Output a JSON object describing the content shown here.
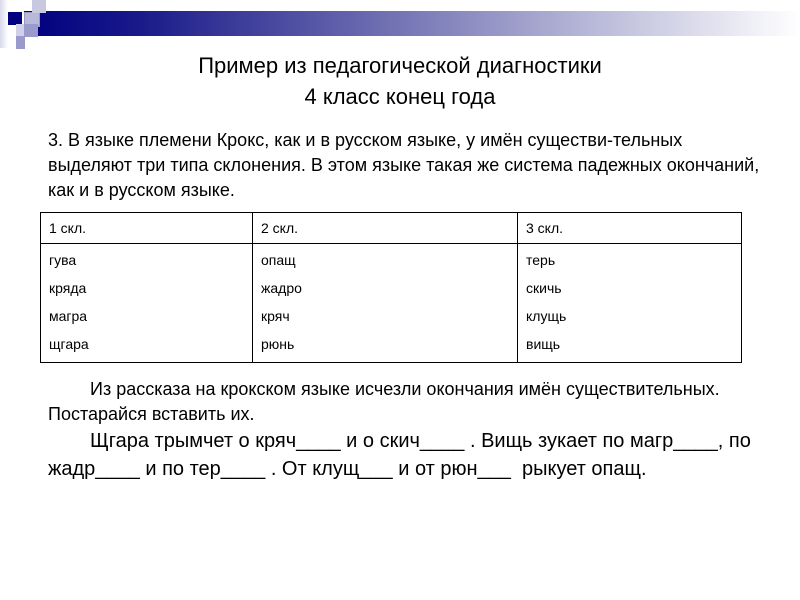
{
  "title": {
    "line1": "Пример из педагогической диагностики",
    "line2": "4 класс конец года"
  },
  "task": "3. В языке племени Крокс, как и в русском языке, у имён существи-тельных выделяют три типа склонения. В этом языке такая же система падежных окончаний, как и в русском языке.",
  "table": {
    "headers": [
      "1 скл.",
      "2 скл.",
      "3 скл."
    ],
    "columns": [
      [
        "гува",
        "кряда",
        "магра",
        "щгара"
      ],
      [
        "опащ",
        "жадро",
        "кряч",
        "рюнь"
      ],
      [
        "терь",
        "скичь",
        "клущь",
        "вищь"
      ]
    ]
  },
  "instruction": "Из рассказа на крокском языке исчезли окончания имён существительных. Постарайся вставить их.",
  "story": "Щгара трымчет о кряч____ и о скич____ . Вищь зукает по магр____, по жадр____ и по тер____ . От клущ___ и от рюн___  рыкует опащ.",
  "colors": {
    "accent": "#000080"
  }
}
